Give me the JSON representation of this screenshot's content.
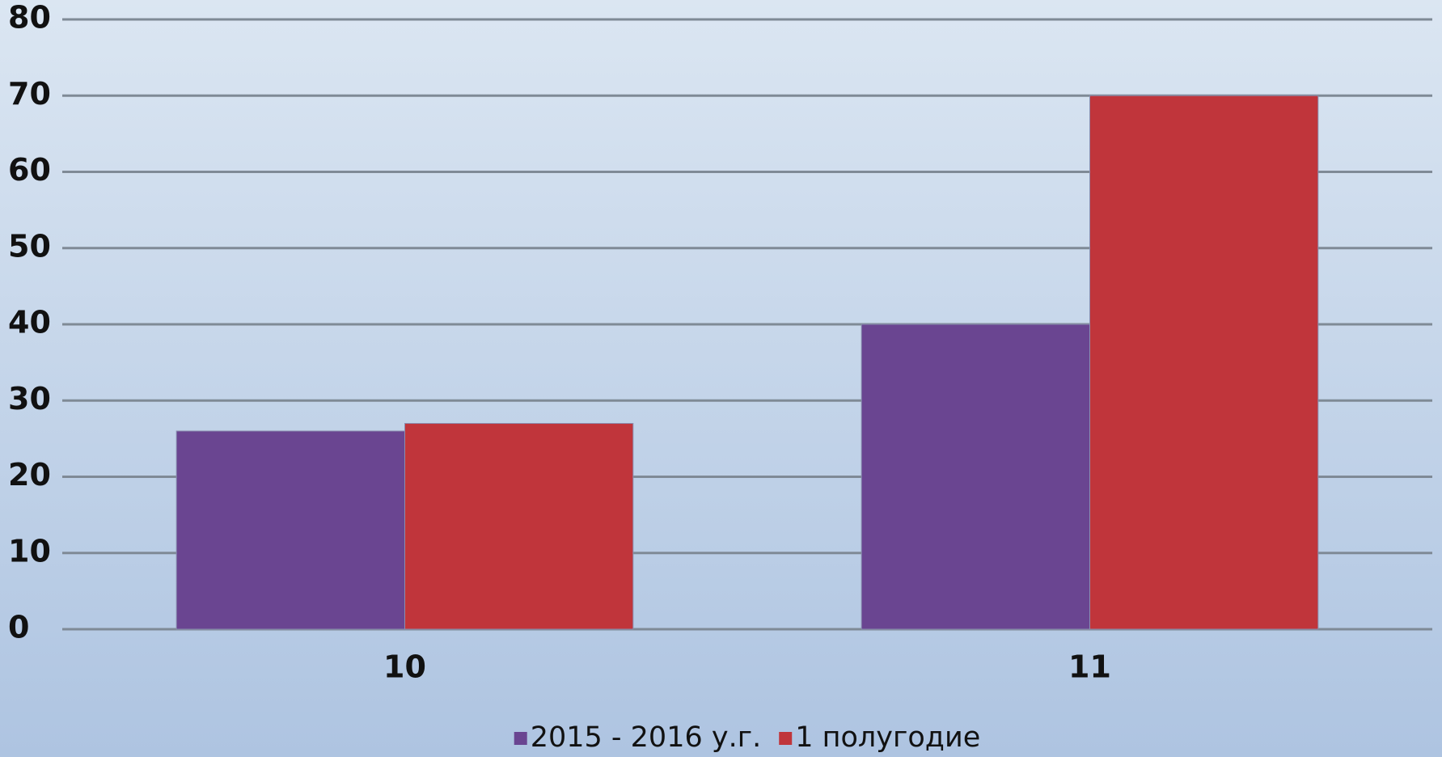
{
  "chart_data": {
    "type": "bar",
    "categories": [
      "10",
      "11"
    ],
    "series": [
      {
        "name": "2015 - 2016 у.г.",
        "color": "#6a4591",
        "values": [
          26,
          40
        ]
      },
      {
        "name": "1 полугодие",
        "color": "#c0353b",
        "values": [
          27,
          70
        ]
      }
    ],
    "ylim": [
      0,
      80
    ],
    "yticks": [
      0,
      10,
      20,
      30,
      40,
      50,
      60,
      70,
      80
    ],
    "grid": true,
    "legend": "bottom"
  }
}
